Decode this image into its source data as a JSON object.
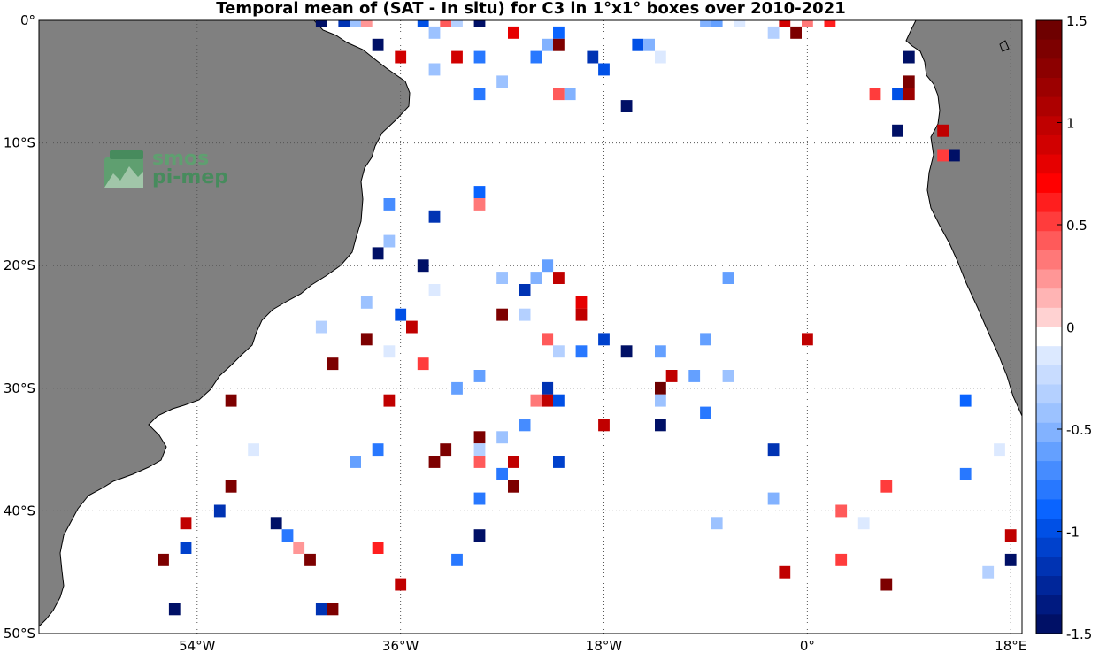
{
  "title": "Temporal mean of (SAT - In situ) for C3 in 1°x1° boxes over 2010-2021",
  "logo_text": [
    "smos",
    "pi-mep"
  ],
  "lat_labels": [
    {
      "lat": 0,
      "label": "0°"
    },
    {
      "lat": -10,
      "label": "10°S"
    },
    {
      "lat": -20,
      "label": "20°S"
    },
    {
      "lat": -30,
      "label": "30°S"
    },
    {
      "lat": -40,
      "label": "40°S"
    },
    {
      "lat": -50,
      "label": "50°S"
    }
  ],
  "lon_labels": [
    {
      "lon": -54,
      "label": "54°W"
    },
    {
      "lon": -36,
      "label": "36°W"
    },
    {
      "lon": -18,
      "label": "18°W"
    },
    {
      "lon": 0,
      "label": "0°"
    },
    {
      "lon": 18,
      "label": "18°E"
    }
  ],
  "colorbar": {
    "min": -1.5,
    "max": 1.5,
    "ticks": [
      {
        "value": 1.5,
        "label": "1.5"
      },
      {
        "value": 1,
        "label": "1"
      },
      {
        "value": 0.5,
        "label": "0.5"
      },
      {
        "value": 0,
        "label": "0"
      },
      {
        "value": -0.5,
        "label": "-0.5"
      },
      {
        "value": -1,
        "label": "-1"
      },
      {
        "value": -1.5,
        "label": "-1.5"
      }
    ],
    "colors_top_to_bottom": [
      "#6e0000",
      "#7d0000",
      "#8c0000",
      "#9c0000",
      "#ad0000",
      "#c00000",
      "#d10000",
      "#e60000",
      "#ff0000",
      "#ff1e1e",
      "#ff3c3c",
      "#ff5a5a",
      "#ff7878",
      "#ff9696",
      "#ffb4b4",
      "#ffd2d2",
      "#ffffff",
      "#dce9ff",
      "#c8dcff",
      "#b4d0ff",
      "#9cc2ff",
      "#82b2ff",
      "#64a0ff",
      "#468cff",
      "#2878ff",
      "#0a64ff",
      "#0050e6",
      "#0041cc",
      "#0033b3",
      "#00269a",
      "#001a80",
      "#001066"
    ]
  },
  "colors": {
    "land": "#808080",
    "ocean": "#ffffff",
    "grid": "#555555"
  },
  "chart_data": {
    "type": "heatmap",
    "title": "Temporal mean of (SAT - In situ) for C3 in 1°x1° boxes over 2010-2021",
    "lon_range": [
      -68,
      19
    ],
    "lat_range": [
      -50,
      0
    ],
    "value_range": [
      -1.5,
      1.5
    ],
    "cells": [
      {
        "lon": -43,
        "lat": 0,
        "v": -1.5
      },
      {
        "lon": -41,
        "lat": 0,
        "v": -1.2
      },
      {
        "lon": -40,
        "lat": 0,
        "v": -0.4
      },
      {
        "lon": -39,
        "lat": 0,
        "v": 0.2
      },
      {
        "lon": -34,
        "lat": 0,
        "v": -1.0
      },
      {
        "lon": -32,
        "lat": 0,
        "v": 0.4
      },
      {
        "lon": -31,
        "lat": 0,
        "v": -0.3
      },
      {
        "lon": -29,
        "lat": 0,
        "v": -1.5
      },
      {
        "lon": -9,
        "lat": 0,
        "v": -0.5
      },
      {
        "lon": -8,
        "lat": 0,
        "v": -0.6
      },
      {
        "lon": -6,
        "lat": 0,
        "v": -0.1
      },
      {
        "lon": -2,
        "lat": 0,
        "v": 0.9
      },
      {
        "lon": 0,
        "lat": 0,
        "v": 0.3
      },
      {
        "lon": 2,
        "lat": 0,
        "v": 0.6
      },
      {
        "lon": -33,
        "lat": -1,
        "v": -0.4
      },
      {
        "lon": -26,
        "lat": -1,
        "v": 0.8
      },
      {
        "lon": -22,
        "lat": -1,
        "v": -0.9
      },
      {
        "lon": -3,
        "lat": -1,
        "v": -0.3
      },
      {
        "lon": -1,
        "lat": -1,
        "v": 1.4
      },
      {
        "lon": -38,
        "lat": -2,
        "v": -1.5
      },
      {
        "lon": -23,
        "lat": -2,
        "v": -0.5
      },
      {
        "lon": -22,
        "lat": -2,
        "v": 1.4
      },
      {
        "lon": -15,
        "lat": -2,
        "v": -1.0
      },
      {
        "lon": -14,
        "lat": -2,
        "v": -0.5
      },
      {
        "lon": -36,
        "lat": -3,
        "v": 0.9
      },
      {
        "lon": -31,
        "lat": -3,
        "v": 0.9
      },
      {
        "lon": -29,
        "lat": -3,
        "v": -0.8
      },
      {
        "lon": -24,
        "lat": -3,
        "v": -0.8
      },
      {
        "lon": -19,
        "lat": -3,
        "v": -1.2
      },
      {
        "lon": -13,
        "lat": -3,
        "v": -0.1
      },
      {
        "lon": 9,
        "lat": -3,
        "v": -1.5
      },
      {
        "lon": -33,
        "lat": -4,
        "v": -0.4
      },
      {
        "lon": -18,
        "lat": -4,
        "v": -1.0
      },
      {
        "lon": -27,
        "lat": -5,
        "v": -0.4
      },
      {
        "lon": 9,
        "lat": -5,
        "v": 1.4
      },
      {
        "lon": -29,
        "lat": -6,
        "v": -0.8
      },
      {
        "lon": -22,
        "lat": -6,
        "v": 0.4
      },
      {
        "lon": -21,
        "lat": -6,
        "v": -0.5
      },
      {
        "lon": 6,
        "lat": -6,
        "v": 0.5
      },
      {
        "lon": 8,
        "lat": -6,
        "v": -1.0
      },
      {
        "lon": 9,
        "lat": -6,
        "v": 1.2
      },
      {
        "lon": -16,
        "lat": -7,
        "v": -1.5
      },
      {
        "lon": 8,
        "lat": -9,
        "v": -1.5
      },
      {
        "lon": 12,
        "lat": -9,
        "v": 1.0
      },
      {
        "lon": 12,
        "lat": -11,
        "v": 0.5
      },
      {
        "lon": 13,
        "lat": -11,
        "v": -1.5
      },
      {
        "lon": -29,
        "lat": -14,
        "v": -0.9
      },
      {
        "lon": -37,
        "lat": -15,
        "v": -0.7
      },
      {
        "lon": -29,
        "lat": -15,
        "v": 0.3
      },
      {
        "lon": -33,
        "lat": -16,
        "v": -1.2
      },
      {
        "lon": -37,
        "lat": -18,
        "v": -0.4
      },
      {
        "lon": -38,
        "lat": -19,
        "v": -1.5
      },
      {
        "lon": -34,
        "lat": -20,
        "v": -1.5
      },
      {
        "lon": -23,
        "lat": -20,
        "v": -0.6
      },
      {
        "lon": -27,
        "lat": -21,
        "v": -0.4
      },
      {
        "lon": -24,
        "lat": -21,
        "v": -0.5
      },
      {
        "lon": -22,
        "lat": -21,
        "v": 1.0
      },
      {
        "lon": -7,
        "lat": -21,
        "v": -0.6
      },
      {
        "lon": -33,
        "lat": -22,
        "v": -0.1
      },
      {
        "lon": -25,
        "lat": -22,
        "v": -1.2
      },
      {
        "lon": -39,
        "lat": -23,
        "v": -0.4
      },
      {
        "lon": -20,
        "lat": -23,
        "v": 0.8
      },
      {
        "lon": -36,
        "lat": -24,
        "v": -1.0
      },
      {
        "lon": -27,
        "lat": -24,
        "v": 1.4
      },
      {
        "lon": -25,
        "lat": -24,
        "v": -0.3
      },
      {
        "lon": -20,
        "lat": -24,
        "v": 1.0
      },
      {
        "lon": -43,
        "lat": -25,
        "v": -0.3
      },
      {
        "lon": -35,
        "lat": -25,
        "v": 1.0
      },
      {
        "lon": -39,
        "lat": -26,
        "v": 1.4
      },
      {
        "lon": -23,
        "lat": -26,
        "v": 0.4
      },
      {
        "lon": -18,
        "lat": -26,
        "v": -1.1
      },
      {
        "lon": -9,
        "lat": -26,
        "v": -0.6
      },
      {
        "lon": 0,
        "lat": -26,
        "v": 1.0
      },
      {
        "lon": -37,
        "lat": -27,
        "v": -0.1
      },
      {
        "lon": -22,
        "lat": -27,
        "v": -0.3
      },
      {
        "lon": -20,
        "lat": -27,
        "v": -0.8
      },
      {
        "lon": -16,
        "lat": -27,
        "v": -1.5
      },
      {
        "lon": -13,
        "lat": -27,
        "v": -0.6
      },
      {
        "lon": -42,
        "lat": -28,
        "v": 1.4
      },
      {
        "lon": -34,
        "lat": -28,
        "v": 0.5
      },
      {
        "lon": -29,
        "lat": -29,
        "v": -0.6
      },
      {
        "lon": -12,
        "lat": -29,
        "v": 1.0
      },
      {
        "lon": -10,
        "lat": -29,
        "v": -0.6
      },
      {
        "lon": -7,
        "lat": -29,
        "v": -0.4
      },
      {
        "lon": -31,
        "lat": -30,
        "v": -0.6
      },
      {
        "lon": -23,
        "lat": -30,
        "v": -1.2
      },
      {
        "lon": -13,
        "lat": -30,
        "v": 1.5
      },
      {
        "lon": -51,
        "lat": -31,
        "v": 1.4
      },
      {
        "lon": -37,
        "lat": -31,
        "v": 1.0
      },
      {
        "lon": -24,
        "lat": -31,
        "v": 0.3
      },
      {
        "lon": -23,
        "lat": -31,
        "v": 1.0
      },
      {
        "lon": -22,
        "lat": -31,
        "v": -1.0
      },
      {
        "lon": -13,
        "lat": -31,
        "v": -0.4
      },
      {
        "lon": 14,
        "lat": -31,
        "v": -0.9
      },
      {
        "lon": -9,
        "lat": -32,
        "v": -0.8
      },
      {
        "lon": -25,
        "lat": -33,
        "v": -0.7
      },
      {
        "lon": -18,
        "lat": -33,
        "v": 1.0
      },
      {
        "lon": -13,
        "lat": -33,
        "v": -1.5
      },
      {
        "lon": -29,
        "lat": -34,
        "v": 1.4
      },
      {
        "lon": -27,
        "lat": -34,
        "v": -0.4
      },
      {
        "lon": -49,
        "lat": -35,
        "v": -0.1
      },
      {
        "lon": -38,
        "lat": -35,
        "v": -0.8
      },
      {
        "lon": -32,
        "lat": -35,
        "v": 1.4
      },
      {
        "lon": -29,
        "lat": -35,
        "v": -0.3
      },
      {
        "lon": -3,
        "lat": -35,
        "v": -1.2
      },
      {
        "lon": 17,
        "lat": -35,
        "v": -0.1
      },
      {
        "lon": -40,
        "lat": -36,
        "v": -0.6
      },
      {
        "lon": -33,
        "lat": -36,
        "v": 1.4
      },
      {
        "lon": -29,
        "lat": -36,
        "v": 0.4
      },
      {
        "lon": -26,
        "lat": -36,
        "v": 1.0
      },
      {
        "lon": -22,
        "lat": -36,
        "v": -1.1
      },
      {
        "lon": -27,
        "lat": -37,
        "v": -0.8
      },
      {
        "lon": 14,
        "lat": -37,
        "v": -0.8
      },
      {
        "lon": -51,
        "lat": -38,
        "v": 1.4
      },
      {
        "lon": -26,
        "lat": -38,
        "v": 1.4
      },
      {
        "lon": 7,
        "lat": -38,
        "v": 0.5
      },
      {
        "lon": -29,
        "lat": -39,
        "v": -0.8
      },
      {
        "lon": -3,
        "lat": -39,
        "v": -0.5
      },
      {
        "lon": -52,
        "lat": -40,
        "v": -1.2
      },
      {
        "lon": 3,
        "lat": -40,
        "v": 0.4
      },
      {
        "lon": -55,
        "lat": -41,
        "v": 1.0
      },
      {
        "lon": -47,
        "lat": -41,
        "v": -1.5
      },
      {
        "lon": -8,
        "lat": -41,
        "v": -0.4
      },
      {
        "lon": 5,
        "lat": -41,
        "v": -0.1
      },
      {
        "lon": -46,
        "lat": -42,
        "v": -0.8
      },
      {
        "lon": -29,
        "lat": -42,
        "v": -1.5
      },
      {
        "lon": 18,
        "lat": -42,
        "v": 1.0
      },
      {
        "lon": -55,
        "lat": -43,
        "v": -1.1
      },
      {
        "lon": -45,
        "lat": -43,
        "v": 0.2
      },
      {
        "lon": -38,
        "lat": -43,
        "v": 0.6
      },
      {
        "lon": -57,
        "lat": -44,
        "v": 1.4
      },
      {
        "lon": -44,
        "lat": -44,
        "v": 1.4
      },
      {
        "lon": -31,
        "lat": -44,
        "v": -0.8
      },
      {
        "lon": 3,
        "lat": -44,
        "v": 0.5
      },
      {
        "lon": 18,
        "lat": -44,
        "v": -1.5
      },
      {
        "lon": -2,
        "lat": -45,
        "v": 1.0
      },
      {
        "lon": 16,
        "lat": -45,
        "v": -0.3
      },
      {
        "lon": -36,
        "lat": -46,
        "v": 1.0
      },
      {
        "lon": 7,
        "lat": -46,
        "v": 1.4
      },
      {
        "lon": -56,
        "lat": -48,
        "v": -1.5
      },
      {
        "lon": -43,
        "lat": -48,
        "v": -1.2
      },
      {
        "lon": -42,
        "lat": -48,
        "v": 1.4
      }
    ]
  }
}
